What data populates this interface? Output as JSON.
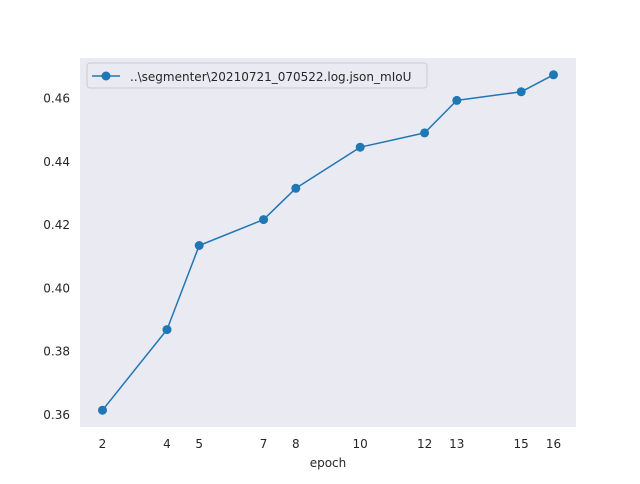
{
  "chart_data": {
    "type": "line",
    "title": "",
    "xlabel": "epoch",
    "ylabel": "",
    "x": [
      2,
      4,
      5,
      7,
      8,
      10,
      12,
      13,
      15,
      16
    ],
    "series": [
      {
        "name": "..\\segmenter\\20210721_070522.log.json_mIoU",
        "values": [
          0.3613,
          0.3868,
          0.4134,
          0.4216,
          0.4315,
          0.4445,
          0.449,
          0.4593,
          0.462,
          0.4674
        ]
      }
    ],
    "xticks": [
      2,
      4,
      5,
      7,
      8,
      10,
      12,
      13,
      15,
      16
    ],
    "yticks": [
      0.36,
      0.38,
      0.4,
      0.42,
      0.44,
      0.46
    ],
    "ytick_labels": [
      "0.36",
      "0.38",
      "0.40",
      "0.42",
      "0.44",
      "0.46"
    ],
    "xlim": [
      1.3,
      16.7
    ],
    "ylim": [
      0.356,
      0.4727
    ],
    "grid": false,
    "legend_position": "top-left",
    "colors": {
      "series": "#1f77b4",
      "plot_background": "#eaeaf2",
      "page_background": "#ffffff"
    }
  }
}
